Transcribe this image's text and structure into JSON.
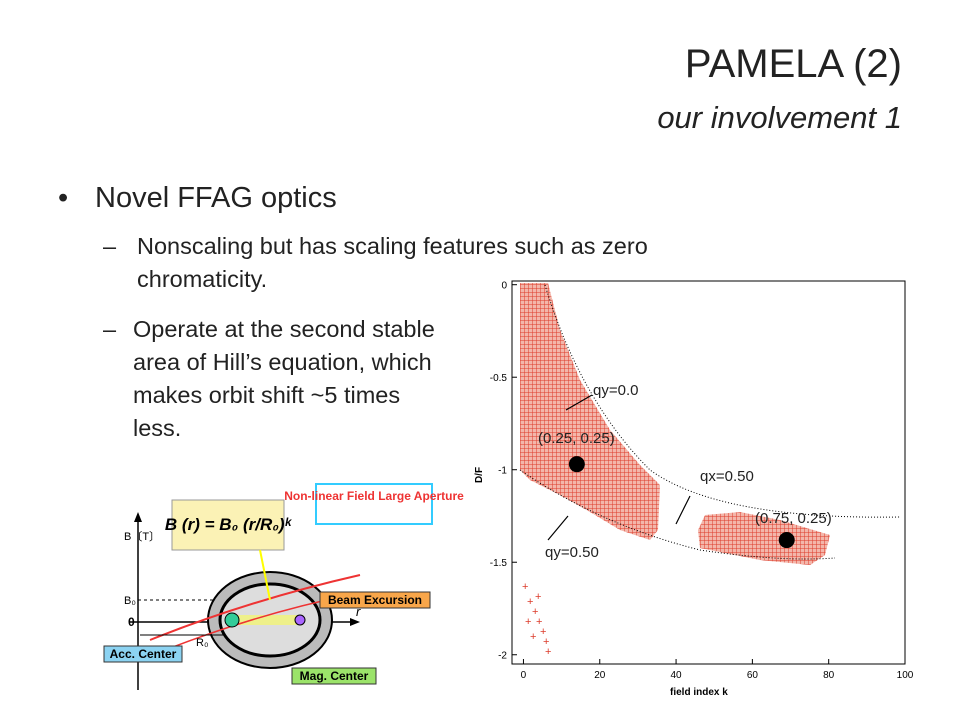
{
  "title": "PAMELA (2)",
  "subtitle": "our involvement 1",
  "bullets": [
    {
      "text": "Novel FFAG optics",
      "items": [
        "Nonscaling but has scaling features such as zero chromaticity.",
        "Operate at the second stable area of Hill’s equation, which makes orbit shift ~5 times less."
      ]
    }
  ],
  "diagram": {
    "formula": "B (r) = B₀ (r/R₀)ᵏ",
    "field_box": "Non-linear Field Large Aperture",
    "beam_box": "Beam Excursion",
    "acc_box": "Acc. Center",
    "mag_box": "Mag. Center",
    "y_axis": "B〔T〕",
    "b0": "B₀",
    "origin": "0",
    "r0": "R₀",
    "r": "r"
  },
  "chart_data": {
    "type": "scatter",
    "x_label": "field index k",
    "y_label": "D/F",
    "xlim": [
      -3,
      100
    ],
    "ylim": [
      -2.05,
      0.02
    ],
    "xticks": [
      0,
      20,
      40,
      60,
      80,
      100
    ],
    "yticks": [
      0,
      -0.5,
      -1,
      -1.5,
      -2
    ],
    "x": [
      14,
      69
    ],
    "values": [
      -0.97,
      -1.38
    ],
    "color": "#000000",
    "annotations": [
      "qy=0.0",
      "(0.25, 0.25)",
      "qx=0.50",
      "(0.75, 0.25)",
      "qy=0.50"
    ]
  }
}
